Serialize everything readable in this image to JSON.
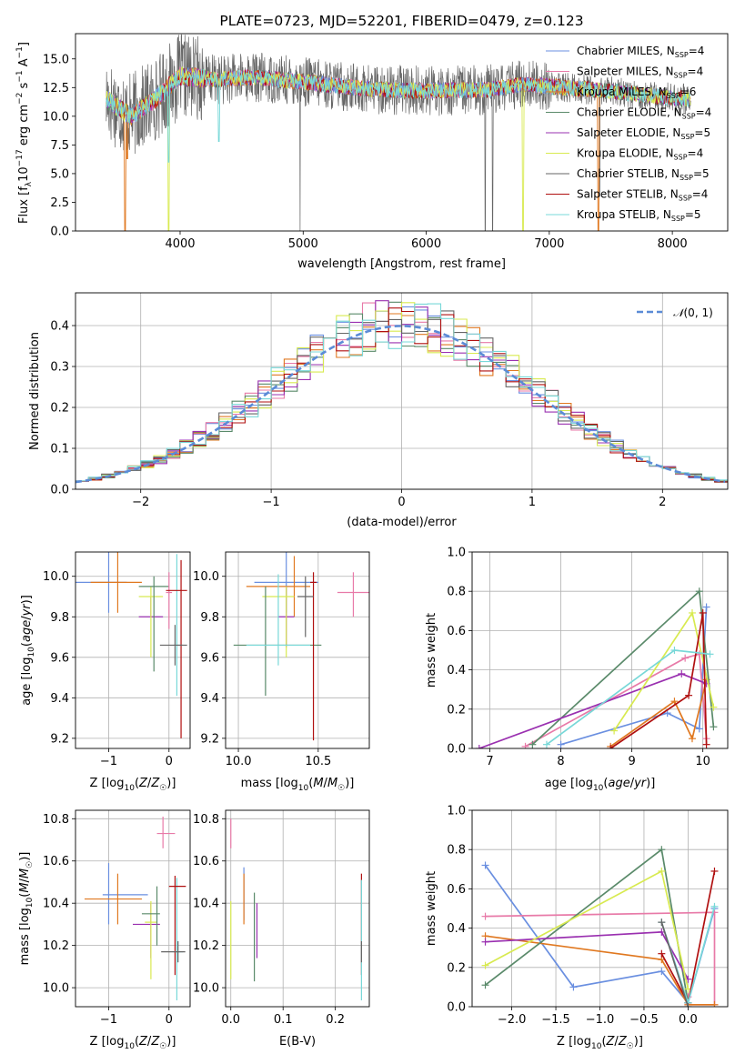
{
  "figure": {
    "title": "PLATE=0723, MJD=52201, FIBERID=0479, z=0.123"
  },
  "series_colors": {
    "Chabrier MILES": "#6a8fe0",
    "Salpeter MILES": "#e87aa8",
    "Kroupa MILES": "#e07820",
    "Chabrier ELODIE": "#5a8a6a",
    "Salpeter ELODIE": "#9a30b0",
    "Kroupa ELODIE": "#d8ea50",
    "Chabrier STELIB": "#666666",
    "Salpeter STELIB": "#b01010",
    "Kroupa STELIB": "#78d8d8"
  },
  "chart_data": [
    {
      "id": "spectrum",
      "type": "line",
      "title": "PLATE=0723, MJD=52201, FIBERID=0479, z=0.123",
      "xlabel": "wavelength [Angstrom, rest frame]",
      "ylabel": "Flux [f_λ 10^-17 erg cm^-2 s^-1 A^-1]",
      "xlim": [
        3150,
        8450
      ],
      "ylim": [
        0,
        17.2
      ],
      "xticks": [
        4000,
        5000,
        6000,
        7000,
        8000
      ],
      "yticks": [
        0.0,
        2.5,
        5.0,
        7.5,
        10.0,
        12.5,
        15.0
      ],
      "legend_position": "upper right",
      "legend": [
        {
          "label": "Chabrier MILES, N",
          "sub": "SSP",
          "suffix": "=4",
          "color": "#6a8fe0"
        },
        {
          "label": "Salpeter MILES, N",
          "sub": "SSP",
          "suffix": "=4",
          "color": "#e87aa8"
        },
        {
          "label": "Kroupa MILES, N",
          "sub": "SSP",
          "suffix": "=6",
          "color": "#e07820"
        },
        {
          "label": "Chabrier ELODIE, N",
          "sub": "SSP",
          "suffix": "=4",
          "color": "#5a8a6a"
        },
        {
          "label": "Salpeter ELODIE, N",
          "sub": "SSP",
          "suffix": "=5",
          "color": "#9a30b0"
        },
        {
          "label": "Kroupa ELODIE, N",
          "sub": "SSP",
          "suffix": "=4",
          "color": "#d8ea50"
        },
        {
          "label": "Chabrier STELIB, N",
          "sub": "SSP",
          "suffix": "=5",
          "color": "#666666"
        },
        {
          "label": "Salpeter STELIB, N",
          "sub": "SSP",
          "suffix": "=4",
          "color": "#b01010"
        },
        {
          "label": "Kroupa STELIB, N",
          "sub": "SSP",
          "suffix": "=5",
          "color": "#78d8d8"
        }
      ],
      "data_range": [
        3400,
        8150
      ],
      "continuum": [
        [
          3400,
          11.5
        ],
        [
          3600,
          10.0
        ],
        [
          3800,
          11.5
        ],
        [
          4000,
          13.5
        ],
        [
          4300,
          13.2
        ],
        [
          4600,
          13.4
        ],
        [
          5000,
          13.0
        ],
        [
          5500,
          12.4
        ],
        [
          6000,
          12.2
        ],
        [
          6500,
          12.3
        ],
        [
          6800,
          12.8
        ],
        [
          7000,
          12.6
        ],
        [
          7500,
          12.2
        ],
        [
          8000,
          11.6
        ],
        [
          8150,
          11.5
        ]
      ],
      "dips": [
        {
          "series": "Kroupa MILES",
          "x": 3555,
          "to": 0.0
        },
        {
          "series": "Kroupa MILES",
          "x": 3570,
          "to": 6.3
        },
        {
          "series": "Kroupa ELODIE",
          "x": 3905,
          "to": 0.0
        },
        {
          "series": "Kroupa STELIB",
          "x": 3905,
          "to": 6.0
        },
        {
          "series": "Kroupa STELIB",
          "x": 4315,
          "to": 7.8
        },
        {
          "series": "Chabrier STELIB",
          "x": 4975,
          "to": 0.0
        },
        {
          "series": "Chabrier STELIB",
          "x": 6480,
          "to": 0.0
        },
        {
          "series": "Chabrier STELIB",
          "x": 6540,
          "to": 0.0
        },
        {
          "series": "Kroupa ELODIE",
          "x": 6785,
          "to": 0.0
        },
        {
          "series": "Kroupa MILES",
          "x": 7400,
          "to": 0.0
        },
        {
          "series": "Chabrier STELIB",
          "x": 7410,
          "to": 3.0
        }
      ]
    },
    {
      "id": "residuals",
      "type": "line",
      "xlabel": "(data-model)/error",
      "ylabel": "Normed distribution",
      "xlim": [
        -2.5,
        2.5
      ],
      "ylim": [
        0,
        0.48
      ],
      "xticks": [
        -2,
        -1,
        0,
        1,
        2
      ],
      "yticks": [
        0.0,
        0.1,
        0.2,
        0.3,
        0.4
      ],
      "grid": true,
      "legend_position": "upper right",
      "legend": [
        {
          "label": "𝒩(0,1)",
          "color": "#5b8bd6",
          "style": "dashed"
        }
      ],
      "reference_curve": {
        "mean": 0,
        "sigma": 1,
        "color": "#5b8bd6"
      },
      "histograms": "9 step histograms, one per model, roughly following N(0,1) with noise; peak values near 0.44-0.46"
    },
    {
      "id": "age_vs_Z",
      "type": "scatter",
      "xlabel": "Z [log10(Z/Z☉)]",
      "ylabel": "age [log10(age/yr)]",
      "xlim": [
        -1.55,
        0.35
      ],
      "ylim": [
        9.15,
        10.12
      ],
      "xticks": [
        -1,
        0
      ],
      "yticks": [
        9.2,
        9.4,
        9.6,
        9.8,
        10.0
      ],
      "grid": true,
      "points": [
        {
          "series": "Chabrier MILES",
          "x": -1.0,
          "xerr": [
            0.55,
            0.3
          ],
          "y": 9.97,
          "yerr": [
            0.15,
            0.15
          ]
        },
        {
          "series": "Kroupa MILES",
          "x": -0.85,
          "xerr": [
            0.45,
            0.4
          ],
          "y": 9.97,
          "yerr": [
            0.15,
            0.15
          ]
        },
        {
          "series": "Salpeter ELODIE",
          "x": -0.3,
          "xerr": [
            0.2,
            0.2
          ],
          "y": 9.8,
          "yerr": [
            0.0,
            0.1
          ]
        },
        {
          "series": "Kroupa ELODIE",
          "x": -0.3,
          "xerr": [
            0.2,
            0.2
          ],
          "y": 9.9,
          "yerr": [
            0.3,
            0.05
          ]
        },
        {
          "series": "Chabrier ELODIE",
          "x": -0.25,
          "xerr": [
            0.25,
            0.25
          ],
          "y": 9.95,
          "yerr": [
            0.42,
            0.05
          ]
        },
        {
          "series": "Salpeter MILES",
          "x": 0.0,
          "xerr": [
            0.05,
            0.05
          ],
          "y": 9.92,
          "yerr": [
            0.18,
            0.1
          ]
        },
        {
          "series": "Kroupa STELIB",
          "x": 0.13,
          "xerr": [
            0.05,
            0.1
          ],
          "y": 9.66,
          "yerr": [
            0.25,
            0.45
          ]
        },
        {
          "series": "Salpeter STELIB",
          "x": 0.2,
          "xerr": [
            0.25,
            0.1
          ],
          "y": 9.93,
          "yerr": [
            0.73,
            0.15
          ]
        },
        {
          "series": "Chabrier STELIB",
          "x": 0.1,
          "xerr": [
            0.25,
            0.2
          ],
          "y": 9.66,
          "yerr": [
            0.1,
            0.1
          ]
        }
      ]
    },
    {
      "id": "age_vs_mass",
      "type": "scatter",
      "xlabel": "mass [log10(M/M☉)]",
      "ylabel": "",
      "xlim": [
        9.92,
        10.82
      ],
      "ylim": [
        9.15,
        10.12
      ],
      "xticks": [
        10.0,
        10.5
      ],
      "yticks": [
        9.2,
        9.4,
        9.6,
        9.8,
        10.0
      ],
      "grid": true,
      "points": [
        {
          "series": "Chabrier MILES",
          "x": 10.3,
          "xerr": [
            0.2,
            0.2
          ],
          "y": 9.97,
          "yerr": [
            0.15,
            0.15
          ]
        },
        {
          "series": "Kroupa MILES",
          "x": 10.35,
          "xerr": [
            0.3,
            0.1
          ],
          "y": 9.95,
          "yerr": [
            0.15,
            0.15
          ]
        },
        {
          "series": "Salpeter ELODIE",
          "x": 10.3,
          "xerr": [
            0.05,
            0.05
          ],
          "y": 9.8,
          "yerr": [
            0.15,
            0.15
          ]
        },
        {
          "series": "Kroupa ELODIE",
          "x": 10.3,
          "xerr": [
            0.15,
            0.05
          ],
          "y": 9.9,
          "yerr": [
            0.3,
            0.05
          ]
        },
        {
          "series": "Chabrier ELODIE",
          "x": 10.17,
          "xerr": [
            0.2,
            0.35
          ],
          "y": 9.66,
          "yerr": [
            0.25,
            0.29
          ]
        },
        {
          "series": "Salpeter MILES",
          "x": 10.72,
          "xerr": [
            0.1,
            0.1
          ],
          "y": 9.92,
          "yerr": [
            0.12,
            0.1
          ]
        },
        {
          "series": "Kroupa STELIB",
          "x": 10.25,
          "xerr": [
            0.2,
            0.2
          ],
          "y": 9.66,
          "yerr": [
            0.1,
            0.35
          ]
        },
        {
          "series": "Salpeter STELIB",
          "x": 10.47,
          "xerr": [
            0.02,
            0.02
          ],
          "y": 9.97,
          "yerr": [
            0.78,
            0.05
          ]
        },
        {
          "series": "Chabrier STELIB",
          "x": 10.42,
          "xerr": [
            0.05,
            0.05
          ],
          "y": 9.9,
          "yerr": [
            0.2,
            0.1
          ]
        }
      ]
    },
    {
      "id": "massweight_vs_age",
      "type": "line",
      "xlabel": "age [log10(age/yr)]",
      "ylabel": "mass weight",
      "xlim": [
        6.75,
        10.35
      ],
      "ylim": [
        0,
        1.0
      ],
      "xticks": [
        7,
        8,
        9,
        10
      ],
      "yticks": [
        0.0,
        0.2,
        0.4,
        0.6,
        0.8,
        1.0
      ],
      "grid": true,
      "series": [
        {
          "name": "Chabrier MILES",
          "x": [
            8.0,
            9.5,
            9.95,
            10.05
          ],
          "y": [
            0.02,
            0.18,
            0.1,
            0.72
          ]
        },
        {
          "name": "Salpeter MILES",
          "x": [
            7.5,
            9.75,
            9.95,
            10.05
          ],
          "y": [
            0.01,
            0.46,
            0.48,
            0.05
          ]
        },
        {
          "name": "Kroupa MILES",
          "x": [
            8.7,
            9.6,
            9.85,
            10.05
          ],
          "y": [
            0.01,
            0.24,
            0.05,
            0.35
          ]
        },
        {
          "name": "Chabrier ELODIE",
          "x": [
            7.6,
            9.95,
            10.15
          ],
          "y": [
            0.02,
            0.8,
            0.11
          ]
        },
        {
          "name": "Salpeter ELODIE",
          "x": [
            6.85,
            9.7,
            10.05
          ],
          "y": [
            0.0,
            0.38,
            0.33
          ]
        },
        {
          "name": "Kroupa ELODIE",
          "x": [
            8.75,
            9.85,
            10.15
          ],
          "y": [
            0.09,
            0.69,
            0.21
          ]
        },
        {
          "name": "Salpeter STELIB",
          "x": [
            8.7,
            9.8,
            10.0,
            10.05
          ],
          "y": [
            0.0,
            0.27,
            0.69,
            0.02
          ]
        },
        {
          "name": "Kroupa STELIB",
          "x": [
            7.8,
            9.6,
            10.1
          ],
          "y": [
            0.02,
            0.5,
            0.48
          ]
        }
      ]
    },
    {
      "id": "mass_vs_Z",
      "type": "scatter",
      "xlabel": "Z [log10(Z/Z☉)]",
      "ylabel": "mass [log10(M/M☉)]",
      "xlim": [
        -1.55,
        0.35
      ],
      "ylim": [
        9.91,
        10.84
      ],
      "xticks": [
        -1,
        0
      ],
      "yticks": [
        10.0,
        10.2,
        10.4,
        10.6,
        10.8
      ],
      "grid": true,
      "points": [
        {
          "series": "Chabrier MILES",
          "x": -1.0,
          "xerr": [
            0.1,
            0.65
          ],
          "y": 10.44,
          "yerr": [
            0.14,
            0.15
          ]
        },
        {
          "series": "Kroupa MILES",
          "x": -0.85,
          "xerr": [
            0.55,
            0.4
          ],
          "y": 10.42,
          "yerr": [
            0.12,
            0.12
          ]
        },
        {
          "series": "Salpeter ELODIE",
          "x": -0.3,
          "xerr": [
            0.3,
            0.15
          ],
          "y": 10.3,
          "yerr": [
            0.16,
            0.1
          ]
        },
        {
          "series": "Kroupa ELODIE",
          "x": -0.3,
          "xerr": [
            0.1,
            0.1
          ],
          "y": 10.31,
          "yerr": [
            0.27,
            0.1
          ]
        },
        {
          "series": "Chabrier ELODIE",
          "x": -0.2,
          "xerr": [
            0.25,
            0.05
          ],
          "y": 10.35,
          "yerr": [
            0.15,
            0.13
          ]
        },
        {
          "series": "Salpeter MILES",
          "x": -0.1,
          "xerr": [
            0.1,
            0.2
          ],
          "y": 10.73,
          "yerr": [
            0.07,
            0.08
          ]
        },
        {
          "series": "Kroupa STELIB",
          "x": 0.13,
          "xerr": [
            0.05,
            0.1
          ],
          "y": 10.17,
          "yerr": [
            0.23,
            0.35
          ]
        },
        {
          "series": "Salpeter STELIB",
          "x": 0.1,
          "xerr": [
            0.1,
            0.18
          ],
          "y": 10.48,
          "yerr": [
            0.42,
            0.05
          ]
        },
        {
          "series": "Chabrier STELIB",
          "x": 0.15,
          "xerr": [
            0.28,
            0.12
          ],
          "y": 10.17,
          "yerr": [
            0.05,
            0.05
          ]
        }
      ]
    },
    {
      "id": "mass_vs_ebv",
      "type": "scatter",
      "xlabel": "E(B-V)",
      "ylabel": "",
      "xlim": [
        -0.01,
        0.265
      ],
      "ylim": [
        9.91,
        10.84
      ],
      "xticks": [
        0.0,
        0.1,
        0.2
      ],
      "yticks": [
        10.0,
        10.2,
        10.4,
        10.6,
        10.8
      ],
      "grid": true,
      "points": [
        {
          "series": "Salpeter MILES",
          "x": 0.0,
          "y": 10.73,
          "yerr": [
            0.07,
            0.07
          ]
        },
        {
          "series": "Kroupa ELODIE",
          "x": 0.0,
          "y": 10.31,
          "yerr": [
            0.27,
            0.1
          ]
        },
        {
          "series": "Chabrier MILES",
          "x": 0.025,
          "y": 10.44,
          "yerr": [
            0.12,
            0.13
          ]
        },
        {
          "series": "Kroupa MILES",
          "x": 0.025,
          "y": 10.42,
          "yerr": [
            0.12,
            0.12
          ]
        },
        {
          "series": "Chabrier ELODIE",
          "x": 0.045,
          "y": 10.35,
          "yerr": [
            0.32,
            0.1
          ]
        },
        {
          "series": "Salpeter ELODIE",
          "x": 0.05,
          "y": 10.3,
          "yerr": [
            0.16,
            0.1
          ]
        },
        {
          "series": "Salpeter STELIB",
          "x": 0.25,
          "y": 10.48,
          "yerr": [
            0.42,
            0.06
          ]
        },
        {
          "series": "Kroupa STELIB",
          "x": 0.25,
          "y": 10.17,
          "yerr": [
            0.23,
            0.34
          ]
        },
        {
          "series": "Chabrier STELIB",
          "x": 0.25,
          "y": 10.17,
          "yerr": [
            0.05,
            0.05
          ]
        }
      ]
    },
    {
      "id": "massweight_vs_Z",
      "type": "line",
      "xlabel": "Z [log10(Z/Z☉)]",
      "ylabel": "mass weight",
      "xlim": [
        -2.45,
        0.45
      ],
      "ylim": [
        0,
        1.0
      ],
      "xticks": [
        -2.0,
        -1.5,
        -1.0,
        -0.5,
        0.0
      ],
      "yticks": [
        0.0,
        0.2,
        0.4,
        0.6,
        0.8,
        1.0
      ],
      "grid": true,
      "series": [
        {
          "name": "Chabrier MILES",
          "x": [
            -2.3,
            -1.3,
            -0.3,
            0.0,
            0.3
          ],
          "y": [
            0.72,
            0.1,
            0.18,
            0.02,
            0.5
          ]
        },
        {
          "name": "Salpeter MILES",
          "x": [
            -2.3,
            0.3,
            0.3,
            0.0,
            0.0
          ],
          "y": [
            0.46,
            0.48,
            0.01,
            0.01,
            0.05
          ]
        },
        {
          "name": "Kroupa MILES",
          "x": [
            -2.3,
            -0.3,
            0.0,
            0.3
          ],
          "y": [
            0.36,
            0.24,
            0.01,
            0.01
          ]
        },
        {
          "name": "Chabrier ELODIE",
          "x": [
            -2.3,
            -0.3,
            0.0
          ],
          "y": [
            0.11,
            0.8,
            0.02
          ]
        },
        {
          "name": "Salpeter ELODIE",
          "x": [
            -2.3,
            -0.3,
            0.0
          ],
          "y": [
            0.33,
            0.38,
            0.14
          ]
        },
        {
          "name": "Kroupa ELODIE",
          "x": [
            -2.3,
            -0.3,
            0.0
          ],
          "y": [
            0.21,
            0.69,
            0.09
          ]
        },
        {
          "name": "Salpeter STELIB",
          "x": [
            -0.3,
            0.0,
            0.3
          ],
          "y": [
            0.27,
            0.02,
            0.69
          ]
        },
        {
          "name": "Kroupa STELIB",
          "x": [
            -0.3,
            0.0,
            0.3
          ],
          "y": [
            0.43,
            0.02,
            0.51
          ]
        },
        {
          "name": "Chabrier STELIB",
          "x": [
            -0.3,
            0.0
          ],
          "y": [
            0.43,
            0.0
          ]
        }
      ]
    }
  ]
}
